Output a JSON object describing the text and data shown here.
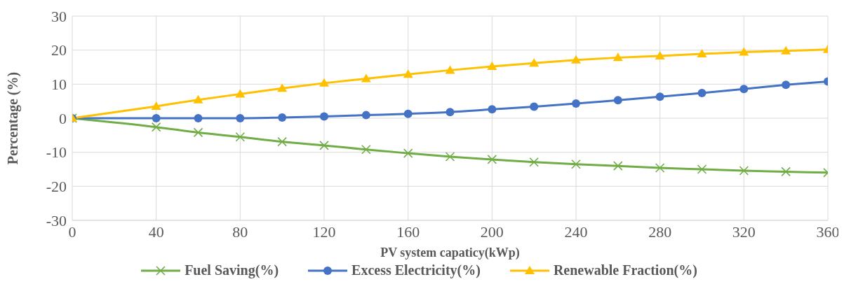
{
  "chart_data": {
    "type": "line",
    "xlabel": "PV system capaticy(kWp)",
    "ylabel": "Percentage (%)",
    "x": [
      0,
      40,
      60,
      80,
      100,
      120,
      140,
      160,
      180,
      200,
      220,
      240,
      260,
      280,
      300,
      320,
      340,
      360
    ],
    "series": [
      {
        "name": "Fuel Saving(%)",
        "color": "#70ad47",
        "marker": "cross",
        "values": [
          0,
          -2.6,
          -4.2,
          -5.5,
          -6.9,
          -8.0,
          -9.2,
          -10.3,
          -11.3,
          -12.1,
          -12.9,
          -13.5,
          -14.0,
          -14.6,
          -15.0,
          -15.4,
          -15.7,
          -16.0
        ]
      },
      {
        "name": "Excess Electricity(%)",
        "color": "#4472c4",
        "marker": "circle",
        "values": [
          0,
          0,
          0,
          0,
          0.2,
          0.5,
          0.9,
          1.3,
          1.8,
          2.6,
          3.4,
          4.3,
          5.3,
          6.3,
          7.4,
          8.6,
          9.8,
          10.8
        ]
      },
      {
        "name": "Renewable Fraction(%)",
        "color": "#ffc000",
        "marker": "triangle",
        "values": [
          0,
          3.5,
          5.4,
          7.1,
          8.8,
          10.3,
          11.6,
          12.9,
          14.1,
          15.2,
          16.2,
          17.1,
          17.8,
          18.3,
          18.9,
          19.4,
          19.8,
          20.2
        ]
      }
    ],
    "xlim": [
      0,
      360
    ],
    "xticks": [
      0,
      40,
      80,
      120,
      160,
      200,
      240,
      280,
      320,
      360
    ],
    "ylim": [
      -30,
      30
    ],
    "yticks": [
      -30,
      -20,
      -10,
      0,
      10,
      20,
      30
    ],
    "grid": true,
    "legend": "bottom"
  }
}
